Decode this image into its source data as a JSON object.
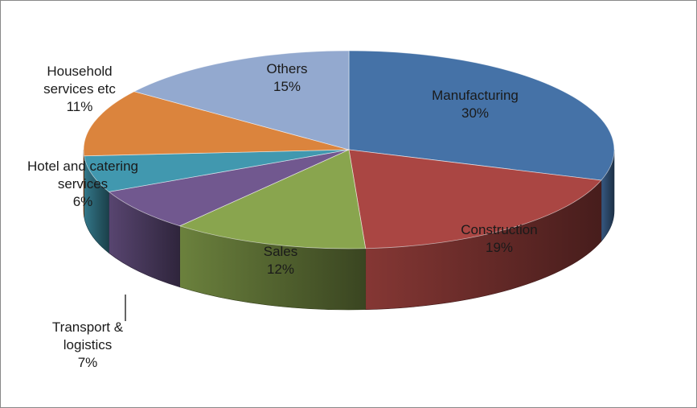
{
  "chart_data": {
    "type": "pie",
    "style": "3d",
    "title": "",
    "categories": [
      "Manufacturing",
      "Construction",
      "Sales",
      "Transport & logistics",
      "Hotel and catering services",
      "Household services etc",
      "Others"
    ],
    "values": [
      30,
      19,
      12,
      7,
      6,
      11,
      15
    ],
    "value_labels": [
      "30%",
      "19%",
      "12%",
      "7%",
      "6%",
      "11%",
      "15%"
    ],
    "label_lines": [
      [
        "Manufacturing"
      ],
      [
        "Construction"
      ],
      [
        "Sales"
      ],
      [
        "Transport &",
        "logistics"
      ],
      [
        "Hotel and catering",
        "services"
      ],
      [
        "Household",
        "services etc"
      ],
      [
        "Others"
      ]
    ],
    "colors": [
      "#4572A7",
      "#AA4643",
      "#89A54E",
      "#71588F",
      "#4198AF",
      "#DB843D",
      "#93A9CF"
    ],
    "legend": "none"
  }
}
